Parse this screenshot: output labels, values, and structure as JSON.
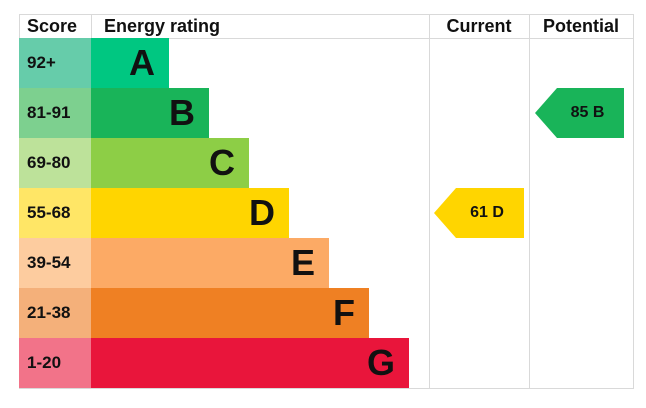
{
  "chart_data": {
    "type": "bar",
    "headers": {
      "score": "Score",
      "rating": "Energy rating",
      "current": "Current",
      "potential": "Potential"
    },
    "bands": [
      {
        "score": "92+",
        "letter": "A",
        "color": "#00c781",
        "light": "#66ccaa"
      },
      {
        "score": "81-91",
        "letter": "B",
        "color": "#19b459",
        "light": "#7dd08f"
      },
      {
        "score": "69-80",
        "letter": "C",
        "color": "#8dce46",
        "light": "#bde29a"
      },
      {
        "score": "55-68",
        "letter": "D",
        "color": "#ffd500",
        "light": "#ffe666"
      },
      {
        "score": "39-54",
        "letter": "E",
        "color": "#fcaa65",
        "light": "#fdcc9f"
      },
      {
        "score": "21-38",
        "letter": "F",
        "color": "#ef8023",
        "light": "#f4b07a"
      },
      {
        "score": "1-20",
        "letter": "G",
        "color": "#e9153b",
        "light": "#f27389"
      }
    ],
    "current": {
      "value": 61,
      "letter": "D",
      "label": "61  D"
    },
    "potential": {
      "value": 85,
      "letter": "B",
      "label": "85  B"
    }
  }
}
